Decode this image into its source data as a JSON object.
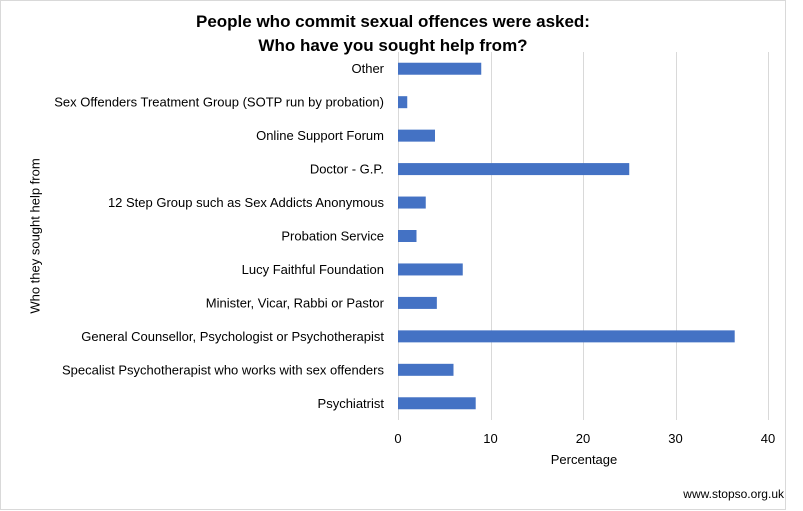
{
  "chart_data": {
    "type": "bar",
    "orientation": "horizontal",
    "title_lines": [
      "People who commit sexual offences were asked:",
      "Who have you sought help from?"
    ],
    "xlabel": "Percentage",
    "ylabel": "Who they sought help from",
    "xlim": [
      0,
      40
    ],
    "xticks": [
      0,
      10,
      20,
      30,
      40
    ],
    "grid": "vertical",
    "legend": "none",
    "bar_color": "#4472c4",
    "categories": [
      "Other",
      "Sex Offenders Treatment Group (SOTP run by probation)",
      "Online Support Forum",
      "Doctor - G.P.",
      "12 Step Group such as Sex Addicts Anonymous",
      "Probation Service",
      "Lucy Faithful Foundation",
      "Minister, Vicar, Rabbi or Pastor",
      "General Counsellor, Psychologist or Psychotherapist",
      "Specalist Psychotherapist who works with sex offenders",
      "Psychiatrist"
    ],
    "values": [
      9,
      1,
      4,
      25,
      3,
      2,
      7,
      4.2,
      36.4,
      6,
      8.4
    ]
  },
  "footer": {
    "source": "www.stopso.org.uk"
  }
}
